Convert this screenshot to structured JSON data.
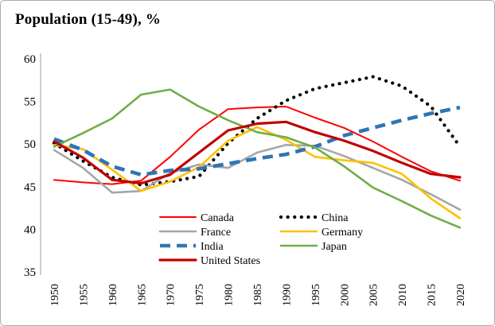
{
  "chart_data": {
    "type": "line",
    "title": "Population (15-49), %",
    "xlabel": "",
    "ylabel": "",
    "x": [
      1950,
      1955,
      1960,
      1965,
      1970,
      1975,
      1980,
      1985,
      1990,
      1995,
      2000,
      2005,
      2010,
      2015,
      2020
    ],
    "ylim": [
      35,
      60
    ],
    "yticks": [
      60,
      55,
      50,
      45,
      40,
      35
    ],
    "grid": false,
    "legend_position": "bottom-inside-two-columns",
    "axis_color": "#bfbfbf",
    "series": [
      {
        "name": "Canada",
        "color": "#ff0000",
        "style": "solid",
        "width": 2,
        "values": [
          45.8,
          45.5,
          45.3,
          45.7,
          48.5,
          51.7,
          54.1,
          54.3,
          54.4,
          53.1,
          51.9,
          50.3,
          48.5,
          46.8,
          45.7
        ]
      },
      {
        "name": "China",
        "color": "#000000",
        "style": "dotted",
        "width": 4.2,
        "values": [
          50.1,
          48.0,
          46.1,
          45.2,
          45.6,
          46.2,
          50.1,
          53.0,
          55.1,
          56.5,
          57.2,
          57.9,
          56.8,
          54.4,
          49.7
        ]
      },
      {
        "name": "France",
        "color": "#a6a6a6",
        "style": "solid",
        "width": 2.6,
        "values": [
          49.3,
          47.2,
          44.3,
          44.5,
          46.6,
          47.6,
          47.2,
          49.0,
          49.9,
          49.8,
          48.6,
          47.2,
          45.8,
          44.1,
          42.3
        ]
      },
      {
        "name": "Germany",
        "color": "#ffc000",
        "style": "solid",
        "width": 2.6,
        "values": [
          49.9,
          49.4,
          47.0,
          44.5,
          45.6,
          47.3,
          50.4,
          52.0,
          50.5,
          48.5,
          48.1,
          47.8,
          46.5,
          43.6,
          41.3
        ]
      },
      {
        "name": "India",
        "color": "#2e75b6",
        "style": "dashed",
        "width": 4.6,
        "values": [
          50.6,
          49.3,
          47.4,
          46.4,
          46.9,
          47.1,
          47.7,
          48.3,
          48.8,
          49.7,
          51.0,
          51.9,
          52.8,
          53.6,
          54.3
        ]
      },
      {
        "name": "Japan",
        "color": "#70ad47",
        "style": "solid",
        "width": 2.6,
        "values": [
          49.7,
          51.3,
          53.0,
          55.8,
          56.4,
          54.4,
          52.8,
          51.4,
          50.8,
          49.6,
          47.4,
          44.9,
          43.3,
          41.6,
          40.2
        ]
      },
      {
        "name": "United States",
        "color": "#c00000",
        "style": "solid",
        "width": 3.2,
        "values": [
          50.3,
          48.4,
          45.8,
          45.4,
          46.4,
          49.0,
          51.6,
          52.4,
          52.6,
          51.4,
          50.4,
          49.2,
          47.8,
          46.5,
          46.1
        ]
      }
    ]
  }
}
